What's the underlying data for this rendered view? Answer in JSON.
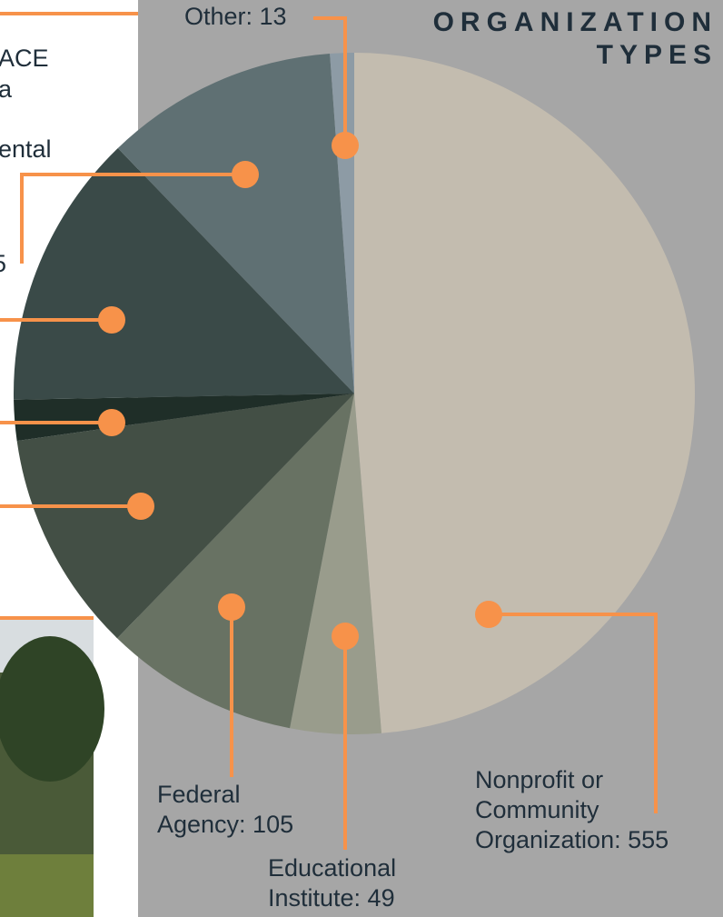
{
  "chart_data": {
    "type": "pie",
    "title_lines": [
      "ORGANIZATION",
      "TYPES"
    ],
    "values": [
      555,
      49,
      105,
      120,
      22,
      149,
      126,
      13
    ],
    "value_labels": [
      [
        "Nonprofit or",
        "Community",
        "Organization: 555"
      ],
      [
        "Educational",
        "Institute: 49"
      ],
      [
        "Federal",
        "Agency: 105"
      ],
      null,
      null,
      null,
      null,
      [
        "Other: 13"
      ]
    ],
    "colors": [
      "#c3bcaf",
      "#999c8c",
      "#687263",
      "#434f45",
      "#1f2e28",
      "#3a4a48",
      "#5f7073",
      "#8d9ba5"
    ],
    "cropped_text": [
      "ACE",
      "a",
      "ental",
      "5"
    ],
    "leader_color": "#f7924a"
  }
}
